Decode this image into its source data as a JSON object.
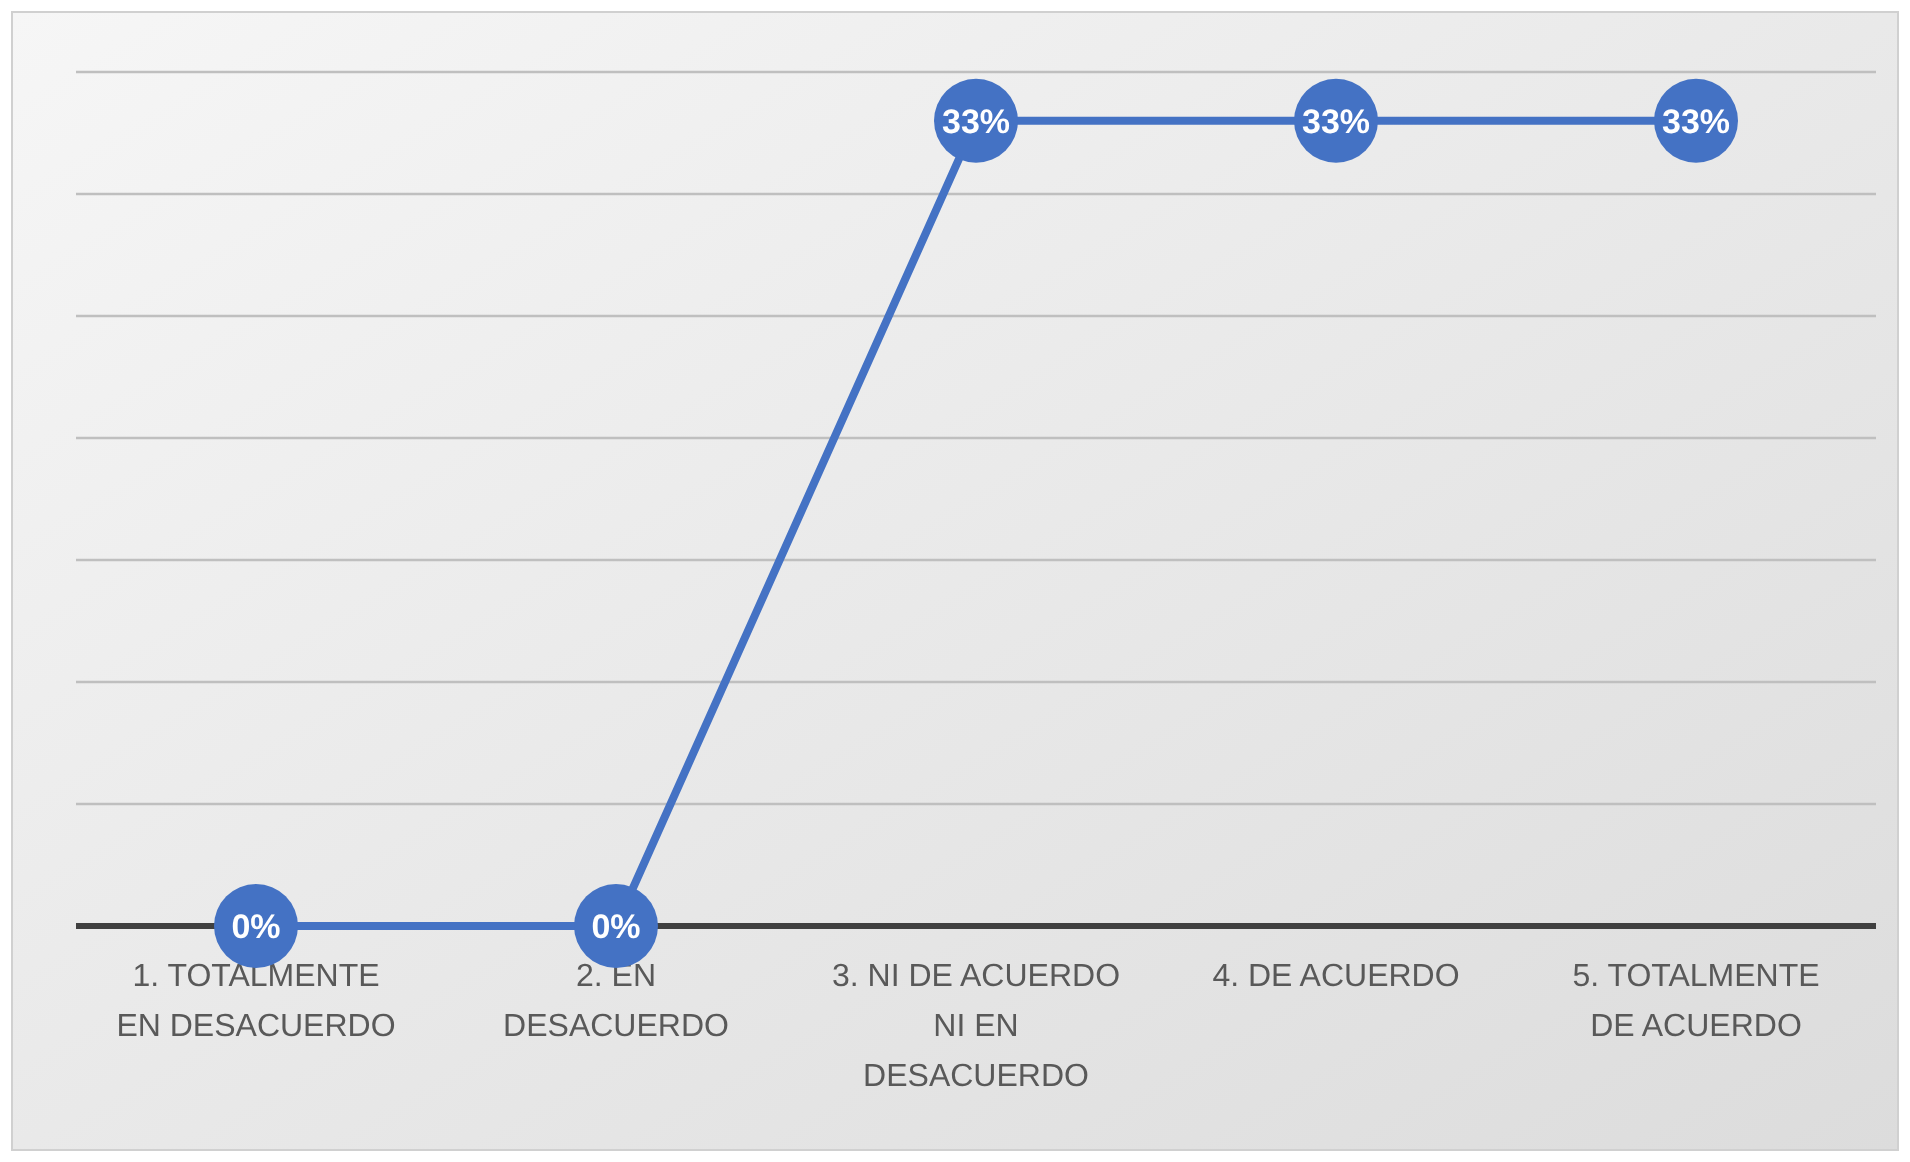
{
  "chart_data": {
    "type": "line",
    "categories": [
      "1. TOTALMENTE EN DESACUERDO",
      "2. EN DESACUERDO",
      "3. NI DE ACUERDO NI EN DESACUERDO",
      "4. DE ACUERDO",
      "5. TOTALMENTE DE ACUERDO"
    ],
    "series": [
      {
        "color": "#4472c4",
        "values": [
          0,
          0,
          33,
          33,
          33
        ],
        "value_labels": [
          "0%",
          "0%",
          "33%",
          "33%",
          "33%"
        ]
      }
    ],
    "ylim": [
      0,
      35
    ],
    "yticks": [
      {
        "value": 0,
        "label": null
      },
      {
        "value": 5,
        "label": null
      },
      {
        "value": 10,
        "label": null
      },
      {
        "value": 15,
        "label": null
      },
      {
        "value": 20,
        "label": null
      },
      {
        "value": 25,
        "label": null
      },
      {
        "value": 30,
        "label": null
      },
      {
        "value": 35,
        "label": null
      }
    ],
    "tick_labels": "x",
    "grid": "y",
    "marker": "circle",
    "line_style": "solid"
  }
}
